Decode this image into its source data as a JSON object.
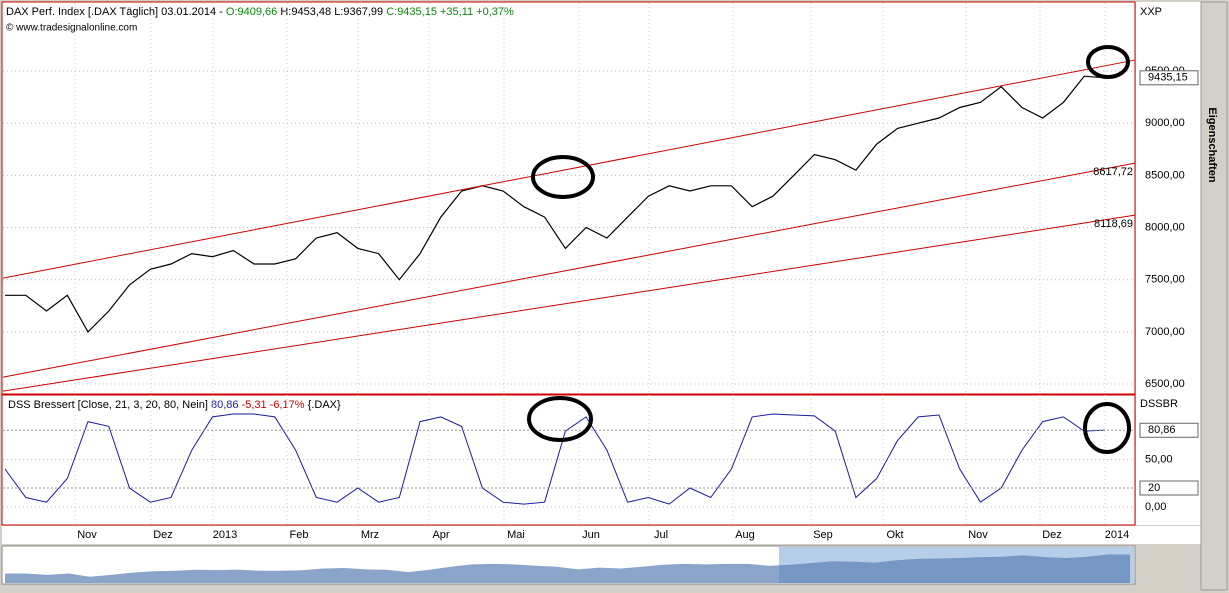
{
  "chart_data": [
    {
      "type": "line",
      "title": "DAX Perf. Index [.DAX  Täglich] 03.01.2014 -",
      "ohlc_labels": [
        "O:9409,66",
        "H:9453,48",
        "L:9367,99",
        "C:9435,15 +35,11 +0,37%"
      ],
      "subtitle": "© www.tradesignalonline.com",
      "axis_name": "XXP",
      "last_label": "9435,15",
      "side_panel": "Eigenschaften",
      "series": [
        {
          "name": "DAX",
          "color": "#000000",
          "values": [
            7350,
            7350,
            7200,
            7350,
            7000,
            7200,
            7450,
            7600,
            7650,
            7750,
            7720,
            7780,
            7650,
            7650,
            7700,
            7900,
            7950,
            7800,
            7750,
            7500,
            7750,
            8100,
            8350,
            8400,
            8350,
            8200,
            8100,
            7800,
            8000,
            7900,
            8100,
            8300,
            8400,
            8350,
            8400,
            8400,
            8200,
            8300,
            8500,
            8700,
            8650,
            8550,
            8800,
            8950,
            9000,
            9050,
            9150,
            9200,
            9350,
            9150,
            9050,
            9200,
            9450,
            9435
          ]
        }
      ],
      "channels": [
        {
          "color": "#cc0000",
          "values": [
            7515,
            9605
          ]
        },
        {
          "color": "#cc0000",
          "values": [
            6566,
            8617.72
          ],
          "end_label": "8617,72"
        },
        {
          "color": "#cc0000",
          "values": [
            6432,
            8118.69
          ],
          "end_label": "8118,69"
        }
      ],
      "ylim": [
        6414,
        10152
      ],
      "yticks": [
        {
          "value": 6500,
          "label": "6500,00"
        },
        {
          "value": 7000,
          "label": "7000,00"
        },
        {
          "value": 7500,
          "label": "7500,00"
        },
        {
          "value": 8000,
          "label": "8000,00"
        },
        {
          "value": 8500,
          "label": "8500,00"
        },
        {
          "value": 9000,
          "label": "9000,00"
        },
        {
          "value": 9500,
          "label": "9500,00"
        }
      ],
      "x_labels": [
        "Nov",
        "Dez",
        "2013",
        "Feb",
        "Mrz",
        "Apr",
        "Mai",
        "Jun",
        "Jul",
        "Aug",
        "Sep",
        "Okt",
        "Nov",
        "Dez",
        "2014"
      ]
    },
    {
      "type": "line",
      "title": "DSS Bressert [Close, 21, 3, 20, 80, Nein]",
      "value_text": "80,86",
      "change_text": "-5,31 -6,17%",
      "symbol": "{.DAX}",
      "axis_name": "DSSBR",
      "series": [
        {
          "name": "DSS",
          "color": "#1a1aa0",
          "values": [
            40,
            10,
            5,
            30,
            90,
            85,
            20,
            5,
            10,
            60,
            95,
            98,
            98,
            95,
            60,
            10,
            5,
            20,
            5,
            10,
            90,
            95,
            85,
            20,
            5,
            3,
            5,
            80,
            95,
            60,
            5,
            10,
            3,
            20,
            10,
            40,
            95,
            98,
            97,
            96,
            80,
            10,
            30,
            70,
            95,
            97,
            40,
            5,
            20,
            60,
            90,
            95,
            80,
            81
          ]
        }
      ],
      "levels": [
        {
          "value": 80.86,
          "label": "80,86"
        },
        {
          "value": 20,
          "label": "20"
        }
      ],
      "ylim": [
        -19,
        117
      ],
      "yticks": [
        {
          "value": 0,
          "label": "0,00"
        },
        {
          "value": 50,
          "label": "50,00"
        }
      ]
    }
  ]
}
